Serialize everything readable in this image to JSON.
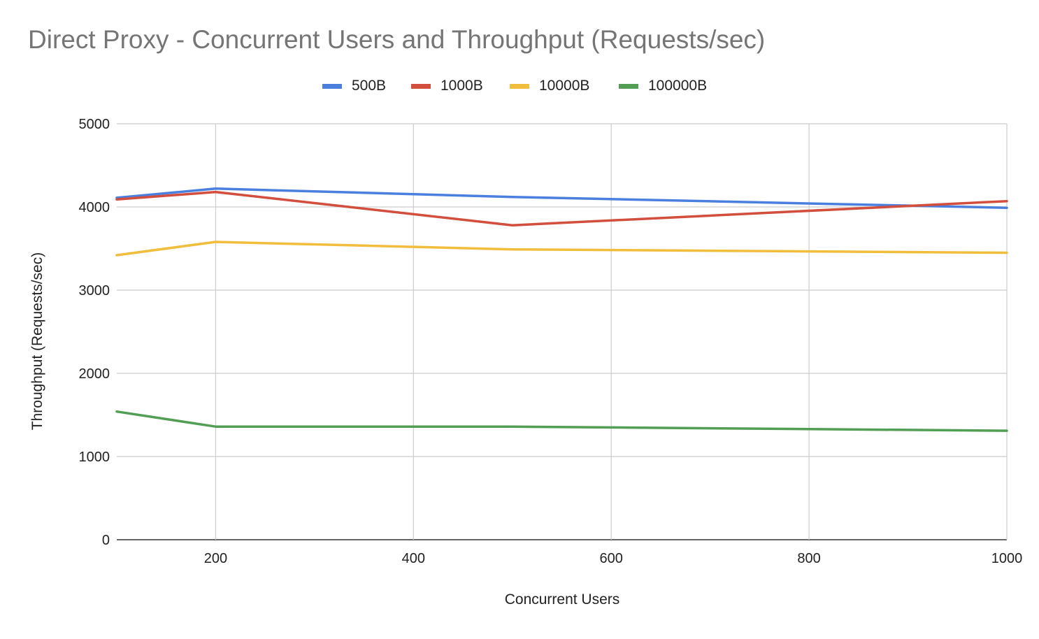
{
  "chart_data": {
    "type": "line",
    "title": "Direct Proxy - Concurrent Users and Throughput (Requests/sec)",
    "xlabel": "Concurrent Users",
    "ylabel": "Throughput (Requests/sec)",
    "x": [
      100,
      200,
      500,
      1000
    ],
    "xlim": [
      100,
      1000
    ],
    "ylim": [
      0,
      5000
    ],
    "xticks": [
      200,
      400,
      600,
      800,
      1000
    ],
    "yticks": [
      0,
      1000,
      2000,
      3000,
      4000,
      5000
    ],
    "grid": true,
    "legend_position": "top",
    "series": [
      {
        "name": "500B",
        "color": "#4a7fde",
        "values": [
          4110,
          4220,
          4120,
          3990
        ]
      },
      {
        "name": "1000B",
        "color": "#d24e3d",
        "values": [
          4090,
          4180,
          3780,
          4070
        ]
      },
      {
        "name": "10000B",
        "color": "#f1bd3c",
        "values": [
          3420,
          3580,
          3490,
          3450
        ]
      },
      {
        "name": "100000B",
        "color": "#519e54",
        "values": [
          1540,
          1360,
          1360,
          1310
        ]
      }
    ]
  }
}
